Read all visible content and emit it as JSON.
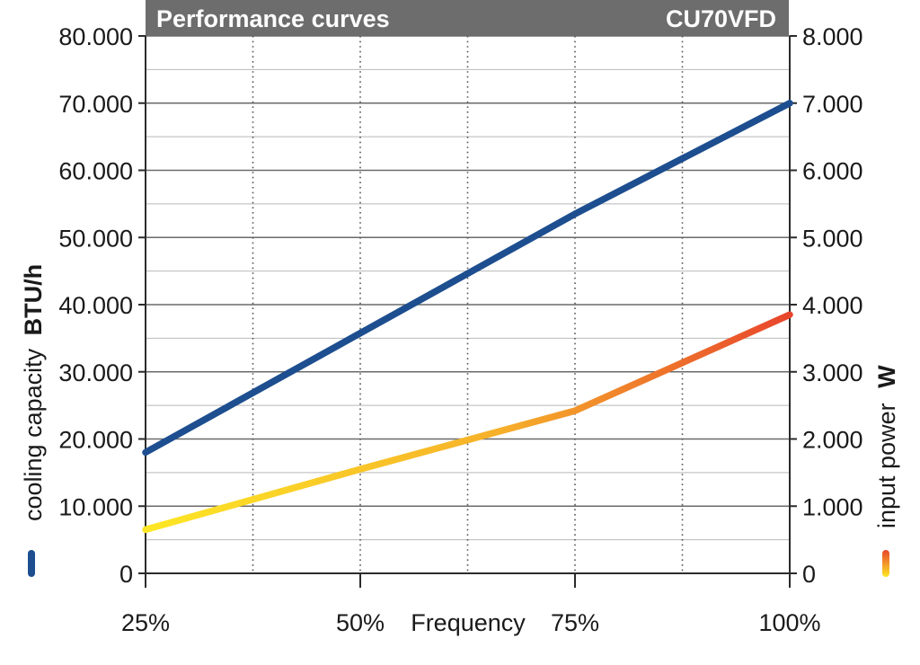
{
  "header": {
    "title": "Performance curves",
    "model": "CU70VFD",
    "background": "#6d6d6d"
  },
  "chart_data": {
    "type": "line",
    "title": "Performance curves",
    "xlabel": "Frequency",
    "categories": [
      "25%",
      "50%",
      "75%",
      "100%"
    ],
    "x": [
      25,
      50,
      75,
      100
    ],
    "xlim": [
      25,
      100
    ],
    "y_left": {
      "label": "cooling capacity",
      "unit": "BTU/h",
      "ylim": [
        0,
        80000
      ],
      "ticks": [
        "0",
        "10.000",
        "20.000",
        "30.000",
        "40.000",
        "50.000",
        "60.000",
        "70.000",
        "80.000"
      ]
    },
    "y_right": {
      "label": "input power",
      "unit": "W",
      "ylim": [
        0,
        8000
      ],
      "ticks": [
        "0",
        "1.000",
        "2.000",
        "3.000",
        "4.000",
        "5.000",
        "6.000",
        "7.000",
        "8.000"
      ]
    },
    "series": [
      {
        "axis": "left",
        "color": "#1d4e8f",
        "x": [
          25,
          75,
          100
        ],
        "values": [
          18000,
          53500,
          70000
        ]
      },
      {
        "axis": "right",
        "gradient": [
          "#fde725",
          "#f5a62c",
          "#e8452c"
        ],
        "x": [
          25,
          50,
          75,
          100
        ],
        "values": [
          650,
          1550,
          2420,
          3850
        ]
      }
    ],
    "grid": true
  }
}
